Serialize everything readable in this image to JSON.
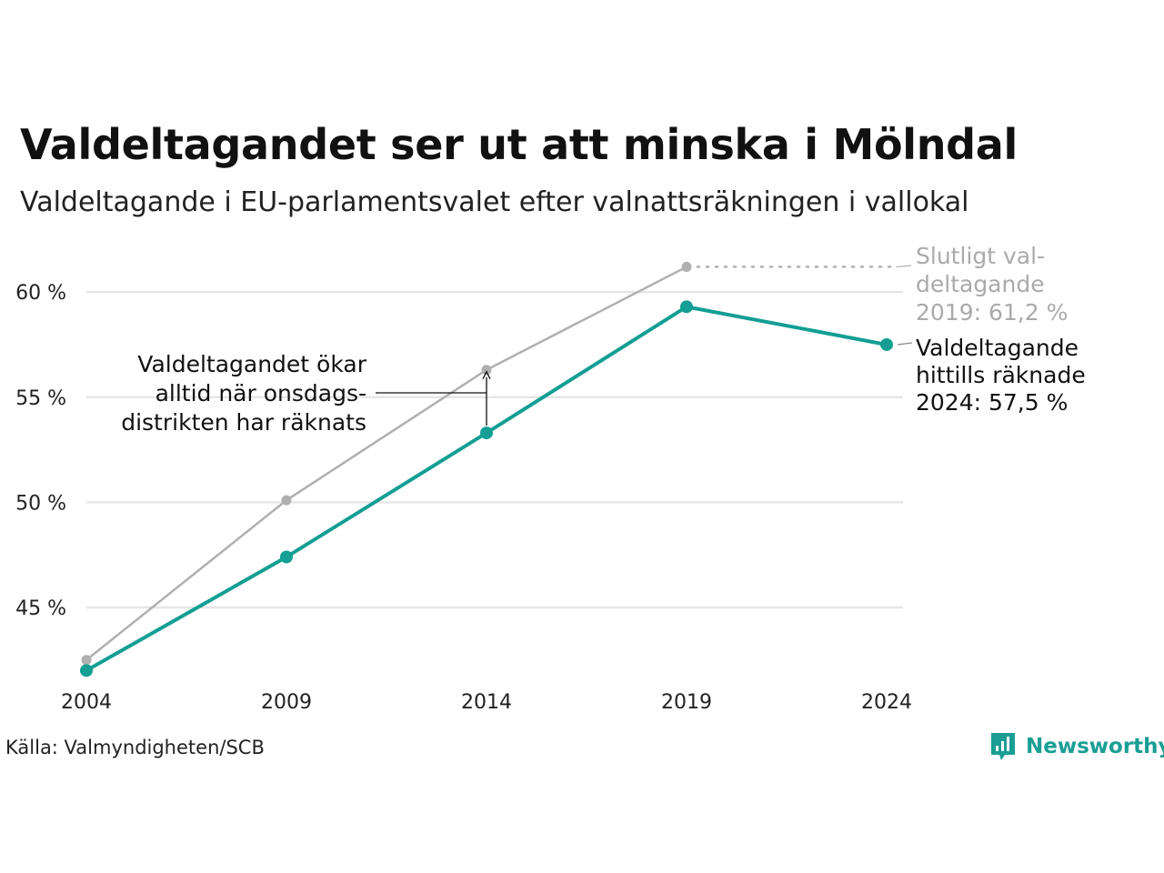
{
  "title": "Valdeltagandet ser ut att minska i Mölndal",
  "subtitle": "Valdeltagande i EU-parlamentsvalet efter valnattsräkningen i vallokal",
  "source": "Källa: Valmyndigheten/SCB",
  "brand": {
    "name": "Newsworthy",
    "color": "#1a9e94",
    "icon": "newsworthy-chart-icon"
  },
  "colors": {
    "main": "#149e94",
    "final": "#b0b0b0",
    "grid": "#e6e6e6"
  },
  "annotations": {
    "final": [
      "Slutligt val-",
      "deltagande",
      "2019: 61,2 %"
    ],
    "current": [
      "Valdeltagande",
      "hittills räknade",
      "2024: 57,5 %"
    ],
    "note": [
      "Valdeltagandet ökar",
      "alltid när onsdags-",
      "distrikten har räknats"
    ]
  },
  "chart_data": {
    "type": "line",
    "x": [
      "2004",
      "2009",
      "2014",
      "2019",
      "2024"
    ],
    "series": [
      {
        "name": "Slutligt valdeltagande",
        "values": [
          42.5,
          50.1,
          56.3,
          61.2,
          null
        ]
      },
      {
        "name": "Valdeltagande hittills räknade",
        "values": [
          42.0,
          47.4,
          53.3,
          59.3,
          57.5
        ]
      }
    ],
    "yticks": [
      "45 %",
      "50 %",
      "55 %",
      "60 %"
    ],
    "ytick_values": [
      45,
      50,
      55,
      60
    ],
    "ylim": [
      40.5,
      62.3
    ],
    "grid": true
  }
}
